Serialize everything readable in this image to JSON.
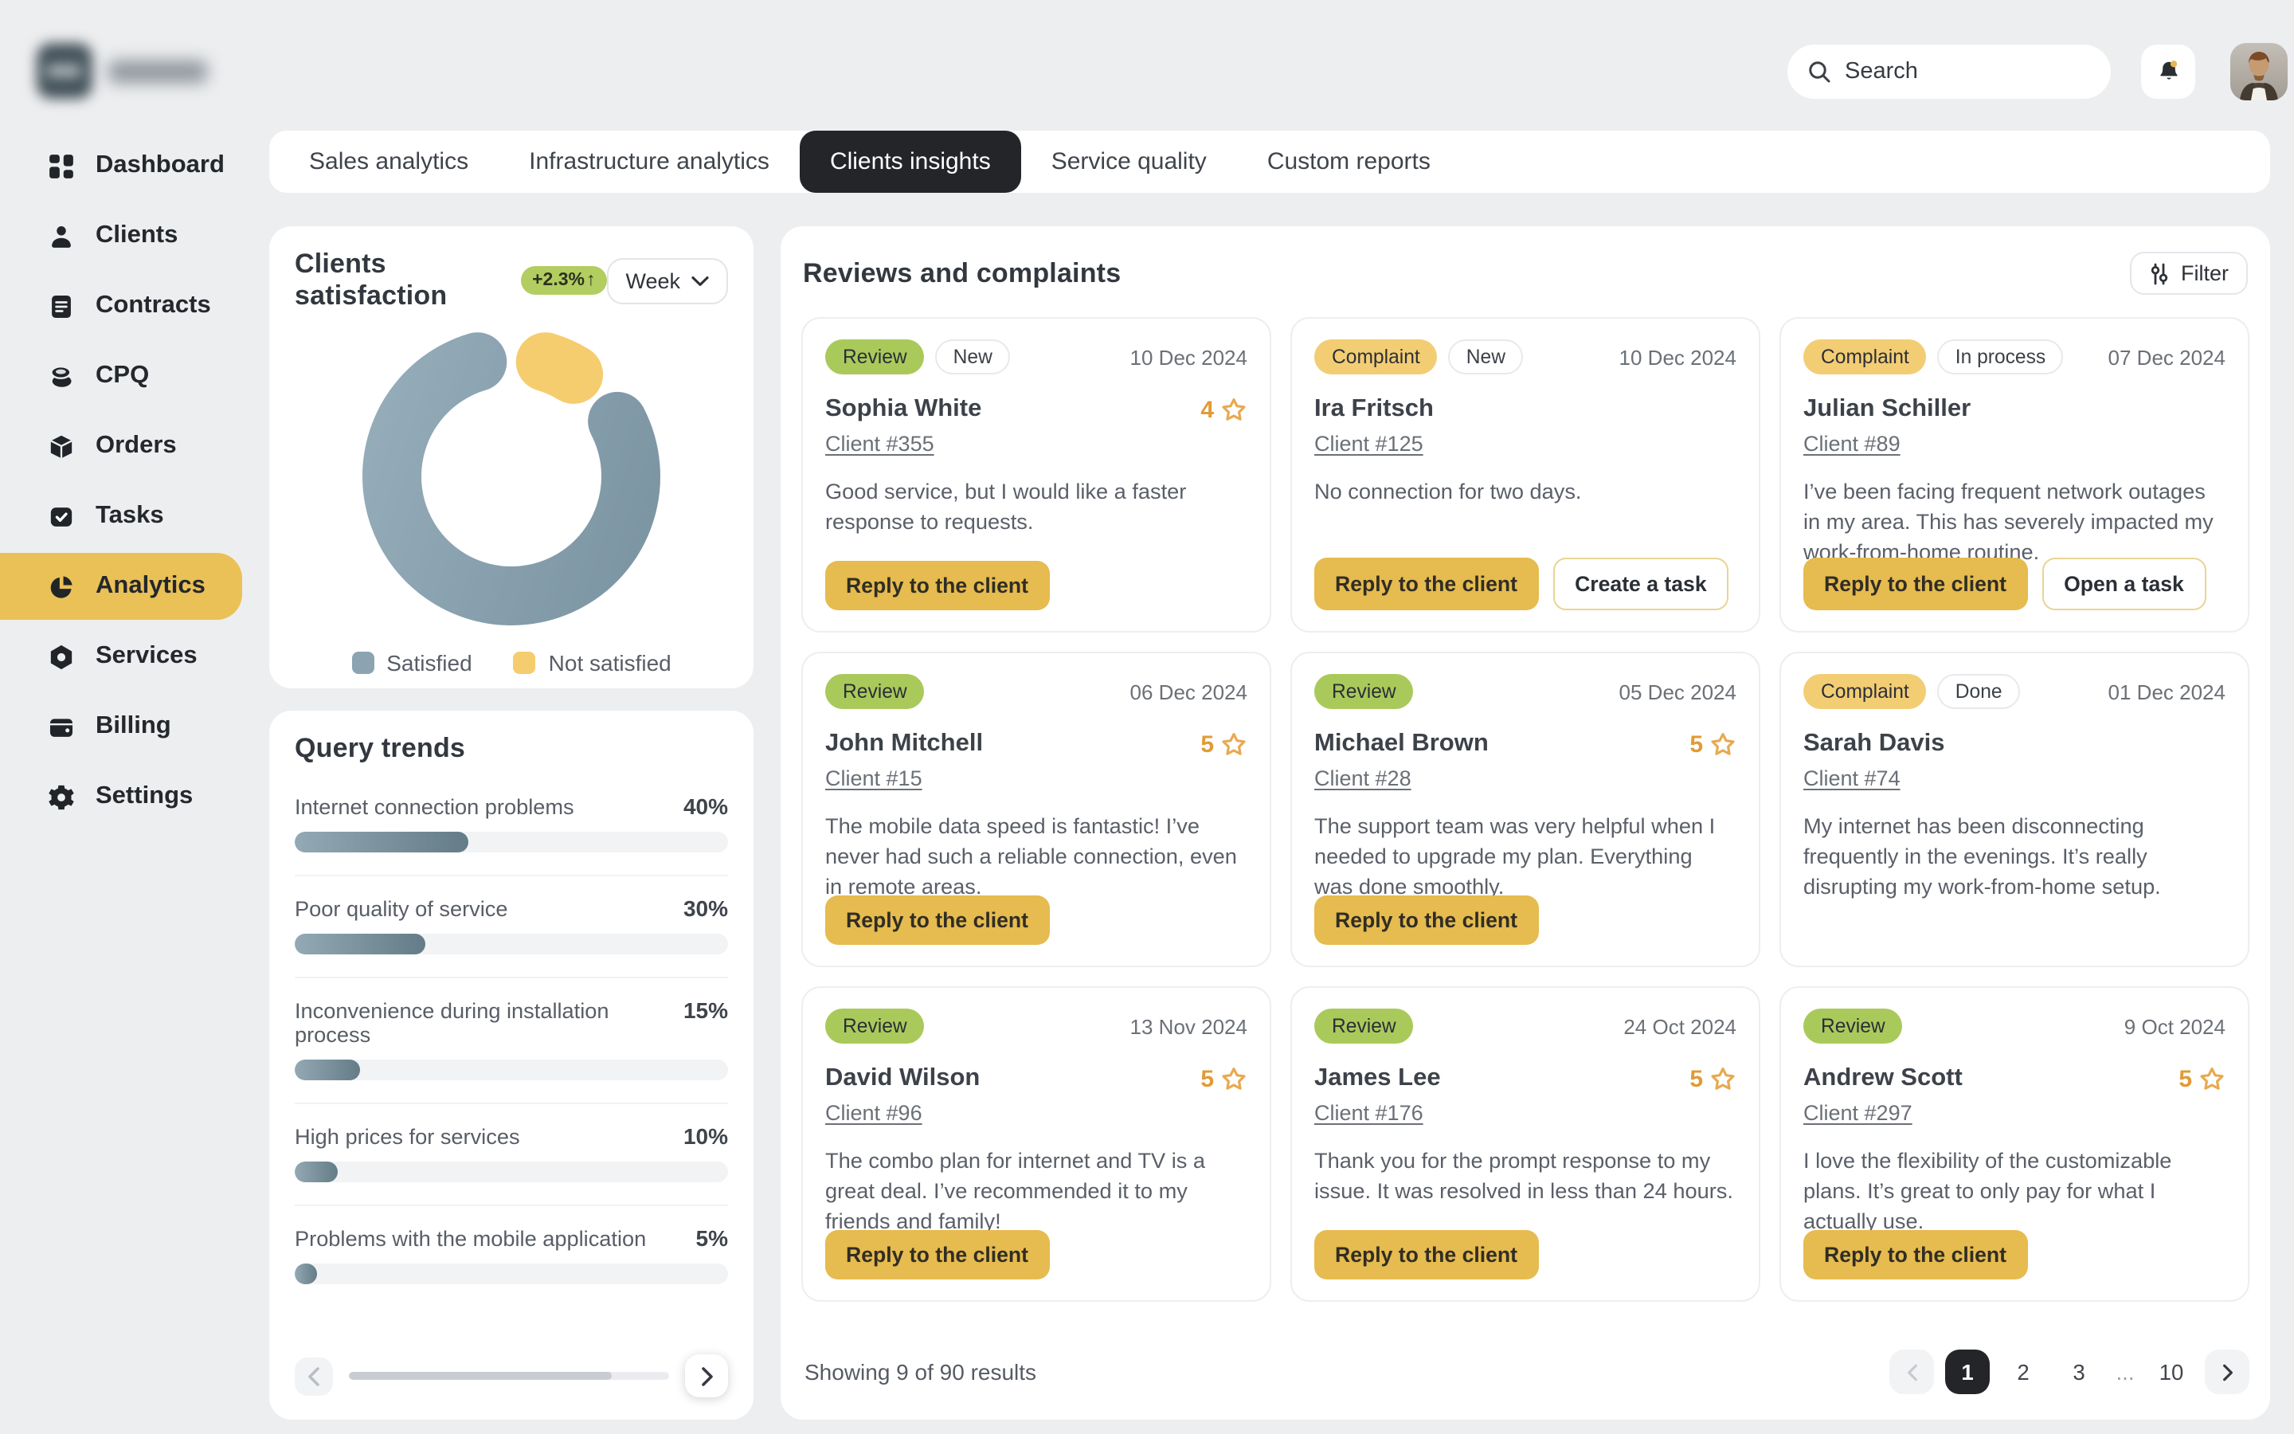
{
  "header": {
    "search_placeholder": "Search",
    "notification_has_badge": true
  },
  "sidebar": {
    "active": "Analytics",
    "items": [
      {
        "label": "Dashboard"
      },
      {
        "label": "Clients"
      },
      {
        "label": "Contracts"
      },
      {
        "label": "CPQ"
      },
      {
        "label": "Orders"
      },
      {
        "label": "Tasks"
      },
      {
        "label": "Analytics"
      },
      {
        "label": "Services"
      },
      {
        "label": "Billing"
      },
      {
        "label": "Settings"
      }
    ]
  },
  "tabs": [
    {
      "label": "Sales analytics",
      "active": false
    },
    {
      "label": "Infrastructure analytics",
      "active": false
    },
    {
      "label": "Clients insights",
      "active": true
    },
    {
      "label": "Service quality",
      "active": false
    },
    {
      "label": "Custom reports",
      "active": false
    }
  ],
  "satisfaction": {
    "title": "Clients satisfaction",
    "delta": "+2.3%",
    "delta_arrow": "↑",
    "period": "Week",
    "legend": {
      "satisfied": "Satisfied",
      "not_satisfied": "Not satisfied"
    },
    "chart_data": {
      "type": "pie",
      "subtype": "donut",
      "categories": [
        "Satisfied",
        "Not satisfied"
      ],
      "values": [
        90,
        10
      ],
      "unit": "% (estimated from arc lengths)",
      "colors": {
        "satisfied": "#8ca4b2",
        "not_satisfied": "#f5cd6e"
      },
      "legend_position": "bottom"
    }
  },
  "query_trends": {
    "title": "Query trends",
    "chart_data": {
      "type": "bar",
      "orientation": "horizontal",
      "categories": [
        "Internet connection problems",
        "Poor quality of service",
        "Inconvenience during installation process",
        "High prices for services",
        "Problems with the mobile application"
      ],
      "values": [
        40,
        30,
        15,
        10,
        5
      ],
      "unit": "%",
      "xlim": [
        0,
        100
      ]
    },
    "items": [
      {
        "label": "Internet connection problems",
        "pct": "40%",
        "value": 40
      },
      {
        "label": "Poor quality of service",
        "pct": "30%",
        "value": 30
      },
      {
        "label": "Inconvenience during installation process",
        "pct": "15%",
        "value": 15
      },
      {
        "label": "High prices for services",
        "pct": "10%",
        "value": 10
      },
      {
        "label": "Problems with the mobile application",
        "pct": "5%",
        "value": 5
      }
    ]
  },
  "reviews": {
    "title": "Reviews and complaints",
    "filter_label": "Filter",
    "cards": [
      {
        "type": "Review",
        "status": "New",
        "date": "10 Dec 2024",
        "name": "Sophia White",
        "rating": 4,
        "client": "Client #355",
        "text": "Good service, but I would like a faster response to requests.",
        "primary": "Reply to the client",
        "secondary": null
      },
      {
        "type": "Complaint",
        "status": "New",
        "date": "10 Dec 2024",
        "name": "Ira Fritsch",
        "rating": null,
        "client": "Client #125",
        "text": "No connection for two days.",
        "primary": "Reply to the client",
        "secondary": "Create a task"
      },
      {
        "type": "Complaint",
        "status": "In process",
        "date": "07 Dec 2024",
        "name": "Julian Schiller",
        "rating": null,
        "client": "Client #89",
        "text": "I’ve been facing frequent network outages in my area. This has severely impacted my work-from-home routine.",
        "primary": "Reply to the client",
        "secondary": "Open a task"
      },
      {
        "type": "Review",
        "status": null,
        "date": "06 Dec 2024",
        "name": "John Mitchell",
        "rating": 5,
        "client": "Client #15",
        "text": "The mobile data speed is fantastic! I’ve never had such a reliable connection, even in remote areas.",
        "primary": "Reply to the client",
        "secondary": null
      },
      {
        "type": "Review",
        "status": null,
        "date": "05 Dec 2024",
        "name": "Michael Brown",
        "rating": 5,
        "client": "Client #28",
        "text": "The support team was very helpful when I needed to upgrade my plan. Everything was done smoothly.",
        "primary": "Reply to the client",
        "secondary": null
      },
      {
        "type": "Complaint",
        "status": "Done",
        "date": "01 Dec 2024",
        "name": "Sarah Davis",
        "rating": null,
        "client": "Client #74",
        "text": "My internet has been disconnecting frequently in the evenings. It’s really disrupting my work-from-home setup.",
        "primary": null,
        "secondary": null
      },
      {
        "type": "Review",
        "status": null,
        "date": "13 Nov 2024",
        "name": "David Wilson",
        "rating": 5,
        "client": "Client #96",
        "text": "The combo plan for internet and TV is a great deal. I’ve recommended it to my friends and family!",
        "primary": "Reply to the client",
        "secondary": null
      },
      {
        "type": "Review",
        "status": null,
        "date": "24 Oct 2024",
        "name": "James Lee",
        "rating": 5,
        "client": "Client #176",
        "text": "Thank you for the prompt response to my issue. It was resolved in less than 24 hours.",
        "primary": "Reply to the client",
        "secondary": null
      },
      {
        "type": "Review",
        "status": null,
        "date": "9 Oct 2024",
        "name": "Andrew Scott",
        "rating": 5,
        "client": "Client #297",
        "text": "I love the flexibility of the customizable plans. It’s great to only pay for what I actually use.",
        "primary": "Reply to the client",
        "secondary": null
      }
    ],
    "pagination": {
      "summary": "Showing 9 of 90 results",
      "pages": [
        "1",
        "2",
        "3",
        "...",
        "10"
      ],
      "active_page": "1"
    }
  },
  "icons": {
    "search-icon": "magnifier",
    "bell-icon": "bell with yellow unread dot",
    "chevron-down-icon": "⌄",
    "filter-icon": "vertical sliders",
    "star-icon": "☆ outline, orange",
    "chevron-left-icon": "‹",
    "chevron-right-icon": "›"
  },
  "colors": {
    "page_bg": "#edeef0",
    "accent_yellow": "#eac156",
    "button_yellow": "#e6bb4f",
    "badge_green": "#a9ca5b",
    "badge_yellow": "#f3cd74",
    "donut_slate": "#8ca4b2",
    "donut_yellow": "#f5cd6e",
    "active_dark": "#232528",
    "rating_orange": "#e19b35"
  }
}
